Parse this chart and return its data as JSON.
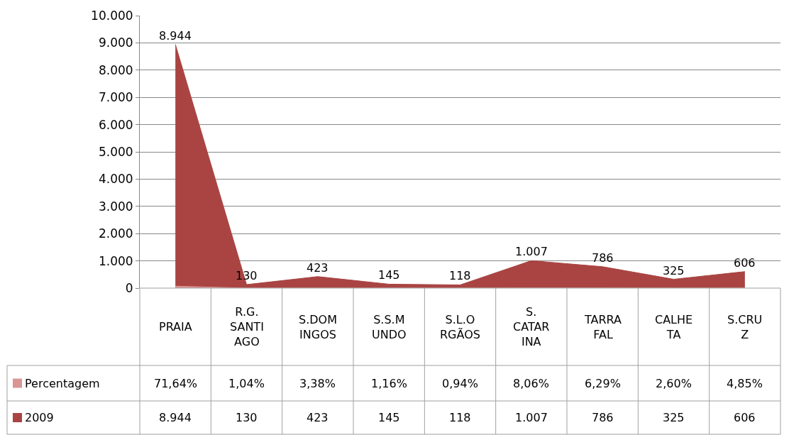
{
  "chart_data": {
    "type": "area",
    "categories": [
      "PRAIA",
      "R.G. SANTIAGO",
      "S.DOMINGOS",
      "S.S.MUNDO",
      "S.L.ORGÃOS",
      "S. CATARINA",
      "TARRAFAL",
      "CALHETA",
      "S.CRUZ"
    ],
    "series": [
      {
        "name": "Percentagem",
        "color": "#d99694",
        "values": [
          71.64,
          1.04,
          3.38,
          1.16,
          0.94,
          8.06,
          6.29,
          2.6,
          4.85
        ],
        "value_labels": [
          "71,64%",
          "1,04%",
          "3,38%",
          "1,16%",
          "0,94%",
          "8,06%",
          "6,29%",
          "2,60%",
          "4,85%"
        ]
      },
      {
        "name": "2009",
        "color": "#a94442",
        "values": [
          8944,
          130,
          423,
          145,
          118,
          1007,
          786,
          325,
          606
        ],
        "value_labels": [
          "8.944",
          "130",
          "423",
          "145",
          "118",
          "1.007",
          "786",
          "325",
          "606"
        ]
      }
    ],
    "ylim": [
      0,
      10000
    ],
    "yticks": [
      {
        "value": 0,
        "label": "0"
      },
      {
        "value": 1000,
        "label": "1.000"
      },
      {
        "value": 2000,
        "label": "2.000"
      },
      {
        "value": 3000,
        "label": "3.000"
      },
      {
        "value": 4000,
        "label": "4.000"
      },
      {
        "value": 5000,
        "label": "5.000"
      },
      {
        "value": 6000,
        "label": "6.000"
      },
      {
        "value": 7000,
        "label": "7.000"
      },
      {
        "value": 8000,
        "label": "8.000"
      },
      {
        "value": 9000,
        "label": "9.000"
      },
      {
        "value": 10000,
        "label": "10.000"
      }
    ],
    "grid": "y",
    "legend": "bottom"
  }
}
